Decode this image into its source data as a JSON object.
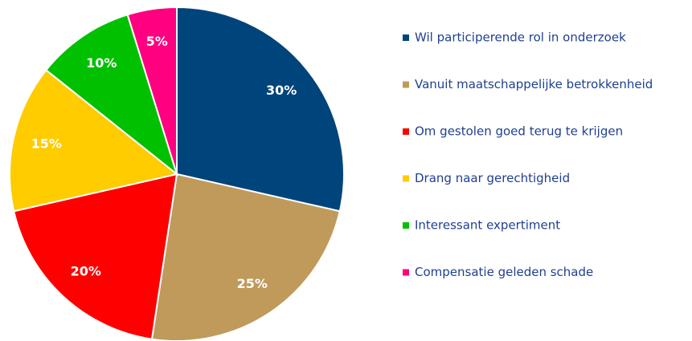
{
  "chart_data": {
    "type": "pie",
    "categories": [
      "Wil participerende rol in onderzoek",
      "Vanuit maatschappelijke betrokkenheid",
      "Om gestolen goed terug te krijgen",
      "Drang naar gerechtigheid",
      "Interessant expertiment",
      "Compensatie geleden schade"
    ],
    "values": [
      30,
      25,
      20,
      15,
      10,
      5
    ],
    "value_labels": [
      "30%",
      "25%",
      "20%",
      "15%",
      "10%",
      "5%"
    ],
    "colors": [
      "#00447c",
      "#c09a5b",
      "#ff0000",
      "#ffcc00",
      "#00c000",
      "#ff0080"
    ],
    "legend": "right"
  }
}
